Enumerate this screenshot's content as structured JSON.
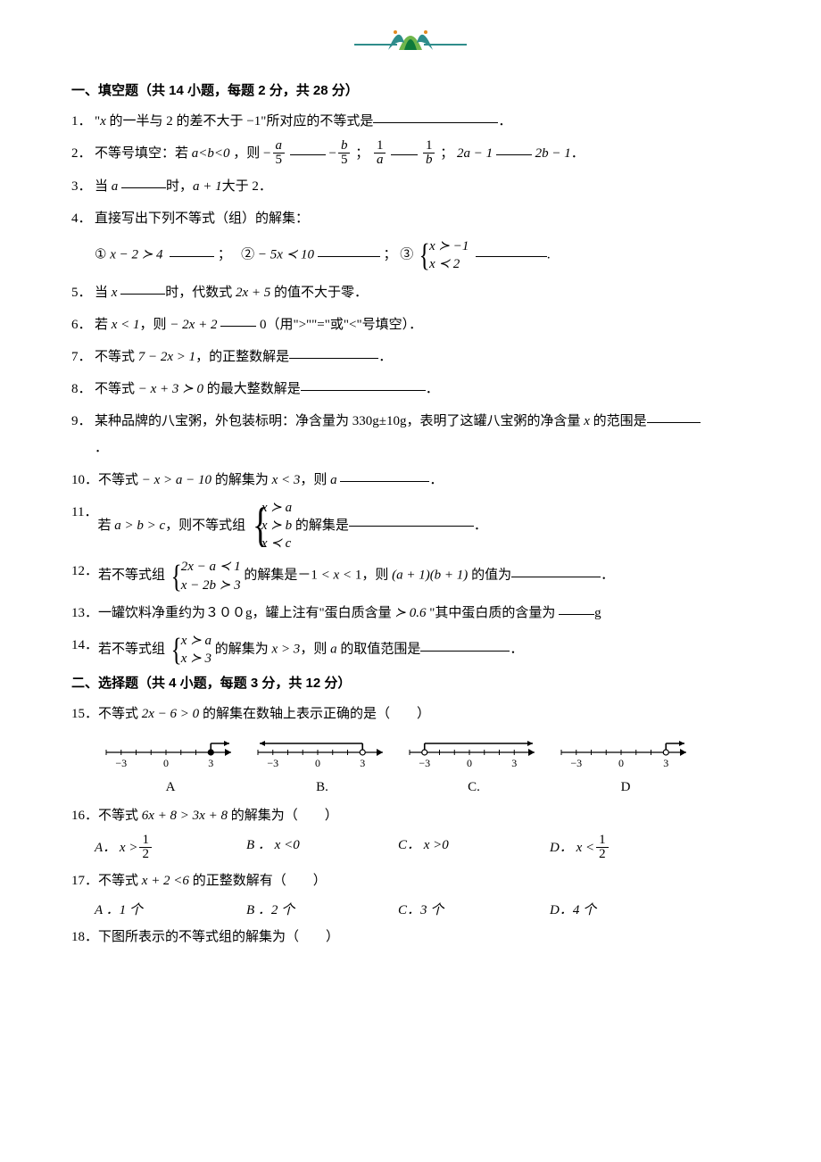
{
  "logo": {
    "leaf_green": "#6fb64c",
    "leaf_dark": "#0f7a3b",
    "ornament_teal": "#2f8d8b",
    "accent_orange": "#e48a1f",
    "ribbon_line": "#2f8d8b"
  },
  "section1": {
    "title": "一、填空题（共 14 小题，每题 2 分，共 28 分）"
  },
  "q1": {
    "num": "1．",
    "pre": "\"",
    "var_x": "x",
    "mid1": " 的一半与 2 的差不大于 ",
    "neg1": "−1",
    "mid2": "\"所对应的不等式是",
    "post": "．"
  },
  "q2": {
    "num": "2．",
    "lead": "不等号填空：若 ",
    "cond": "a<b<0",
    "then": " ，则 ",
    "f1_top_sign": "−",
    "f1_top": "a",
    "f1_bot": "5",
    "f2_top_sign": "−",
    "f2_top": "b",
    "f2_bot": "5",
    "sep1": "；",
    "f3_top": "1",
    "f3_bot": "a",
    "f4_top": "1",
    "f4_bot": "b",
    "sep2": "；",
    "e1": "2a − 1",
    "e2": "2b − 1",
    "end": "．"
  },
  "q3": {
    "num": "3．",
    "pre": "当 ",
    "var_a": "a",
    "mid": "时，",
    "expr": "a + 1",
    "post": "大于 2．"
  },
  "q4": {
    "num": "4．",
    "lead": "直接写出下列不等式（组）的解集：",
    "c1_label": "①",
    "c1_expr": "x − 2 ≻ 4",
    "c2_label": "②",
    "c2_expr": "− 5x ≺ 10",
    "c3_label": "③",
    "c3_row1": "x ≻ −1",
    "c3_row2": "x ≺ 2",
    "sep": "；",
    "end": "."
  },
  "q5": {
    "num": "5．",
    "pre": "当 ",
    "var_x": "x",
    "mid": "时，代数式 ",
    "expr": "2x + 5",
    "post": " 的值不大于零．"
  },
  "q6": {
    "num": "6．",
    "pre": "若 ",
    "cond": "x < 1",
    "mid1": "，则 ",
    "expr": "− 2x + 2",
    "zero": "0",
    "post": "（用\">\"\"=\"或\"<\"号填空）．"
  },
  "q7": {
    "num": "7．",
    "pre": "不等式 ",
    "expr": "7 − 2x > 1",
    "post": "，的正整数解是",
    "end": "．"
  },
  "q8": {
    "num": "8．",
    "pre": "不等式 ",
    "expr": "− x + 3 ≻ 0",
    "post": " 的最大整数解是",
    "end": "．"
  },
  "q9": {
    "num": "9．",
    "text1": "某种品牌的八宝粥，外包装标明：净含量为 330g±10g，表明了这罐八宝粥的净含量 ",
    "var_x": "x",
    "text2": " 的范围是",
    "end": "．"
  },
  "q10": {
    "num": "10．",
    "pre": "不等式 ",
    "expr1": "− x > a − 10",
    "mid": " 的解集为 ",
    "expr2": "x < 3",
    "then": "，则 ",
    "var_a": "a",
    "end": "．"
  },
  "q11": {
    "num": "11．",
    "pre": "若 ",
    "cond": "a > b > c",
    "mid": "，则不等式组 ",
    "r1": "x ≻ a",
    "r2": "x ≻ b",
    "r3": "x ≺ c",
    "post": " 的解集是",
    "end": "．"
  },
  "q12": {
    "num": "12．",
    "pre": "若不等式组 ",
    "r1": "2x − a ≺ 1",
    "r2": "x − 2b ≻ 3",
    "mid1": " 的解集是－1 ",
    "lt1": "< x <",
    "one": " 1",
    "mid2": "，则 ",
    "expr": "(a + 1)(b + 1)",
    "post": " 的值为",
    "end": "．"
  },
  "q13": {
    "num": "13．",
    "text1": "一罐饮料净重约为３００g，罐上注有\"蛋白质含量 ",
    "ge": "≻ 0.6",
    "text2": " \"其中蛋白质的含量为 ",
    "unit": "g"
  },
  "q14": {
    "num": "14．",
    "pre": "若不等式组 ",
    "r1": "x ≻ a",
    "r2": "x ≻ 3",
    "mid": " 的解集为 ",
    "sol": "x > 3",
    "then": "，则 ",
    "var_a": "a",
    "post": " 的取值范围是",
    "end": "．"
  },
  "section2": {
    "title": "二、选择题（共 4 小题，每题 3 分，共 12 分）"
  },
  "q15": {
    "num": "15．",
    "pre": "不等式 ",
    "expr": "2x − 6 > 0",
    "post": " 的解集在数轴上表示正确的是（　　）",
    "labels": {
      "a": "A",
      "b": "B.",
      "c": "C.",
      "d": "D"
    },
    "numberline": {
      "ticks": [
        -3,
        0,
        3
      ],
      "line_color": "#000000",
      "fill_color": "#000000",
      "variants": {
        "A": {
          "point": 3,
          "open": false,
          "dir": "right"
        },
        "B": {
          "point": 3,
          "open": true,
          "dir": "left"
        },
        "C": {
          "point": -3,
          "open": true,
          "dir": "right"
        },
        "D": {
          "point": 3,
          "open": true,
          "dir": "right"
        }
      }
    }
  },
  "q16": {
    "num": "16．",
    "pre": "不等式 ",
    "expr": "6x + 8 > 3x + 8",
    "post": " 的解集为（　　）",
    "A_label": "A．",
    "A_pre": "x >",
    "A_top": "1",
    "A_bot": "2",
    "B_label": "B ．",
    "B_expr": "x <0",
    "C_label": "C．",
    "C_expr": "x >0",
    "D_label": "D．",
    "D_pre": "x <",
    "D_top": "1",
    "D_bot": "2"
  },
  "q17": {
    "num": "17．",
    "pre": "不等式 ",
    "expr": "x + 2 <6",
    "post": " 的正整数解有（　　）",
    "A": "A ．1 个",
    "B": "B ．2 个",
    "C": "C．3  个",
    "D": "D．4 个"
  },
  "q18": {
    "num": "18．",
    "text": "下图所表示的不等式组的解集为（　　）"
  }
}
